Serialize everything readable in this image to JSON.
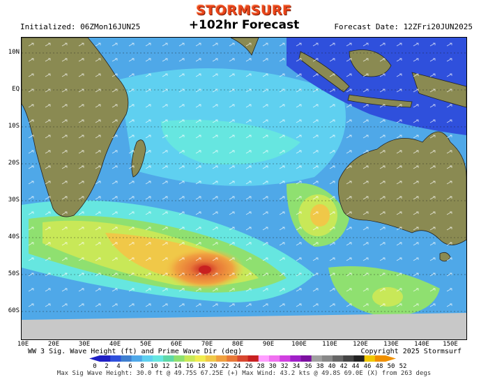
{
  "brand": "STORMSURF",
  "header": {
    "initialized": "Initialized: 06ZMon16JUN25",
    "forecast_title": "+102hr Forecast",
    "forecast_date": "Forecast Date: 12ZFri20JUN2025"
  },
  "map": {
    "lat_labels": [
      "10N",
      "EQ",
      "10S",
      "20S",
      "30S",
      "40S",
      "50S",
      "60S"
    ],
    "lon_labels": [
      "10E",
      "20E",
      "30E",
      "40E",
      "50E",
      "60E",
      "70E",
      "80E",
      "90E",
      "100E",
      "110E",
      "120E",
      "130E",
      "140E",
      "150E"
    ]
  },
  "footer": {
    "title": "WW 3 Sig. Wave Height (ft) and Prime Wave Dir (deg)",
    "copyright": "Copyright 2025 Stormsurf",
    "stats": "Max Sig Wave Height: 30.0 ft @ 49.75S 67.25E (+)  Max Wind: 43.2 kts @ 49.8S 69.0E (X) from 263 degs"
  },
  "scale": {
    "labels": [
      "0",
      "2",
      "4",
      "6",
      "8",
      "10",
      "12",
      "14",
      "16",
      "18",
      "20",
      "22",
      "24",
      "26",
      "28",
      "30",
      "32",
      "34",
      "36",
      "38",
      "40",
      "42",
      "44",
      "46",
      "48",
      "50",
      "52"
    ],
    "colors": [
      "#1f1fc4",
      "#2f50dc",
      "#3f7fcf",
      "#4fa8e8",
      "#5fd0f0",
      "#66e6e0",
      "#5fd8a8",
      "#8fe070",
      "#c8e858",
      "#f0ec50",
      "#f0c848",
      "#f0a040",
      "#e87838",
      "#d84830",
      "#c82020",
      "#ff9fff",
      "#f070f0",
      "#d040e0",
      "#a020c8",
      "#7c10a0",
      "#a0a0a0",
      "#888888",
      "#666666",
      "#444444",
      "#222222",
      "#f0c800",
      "#f09000"
    ]
  }
}
